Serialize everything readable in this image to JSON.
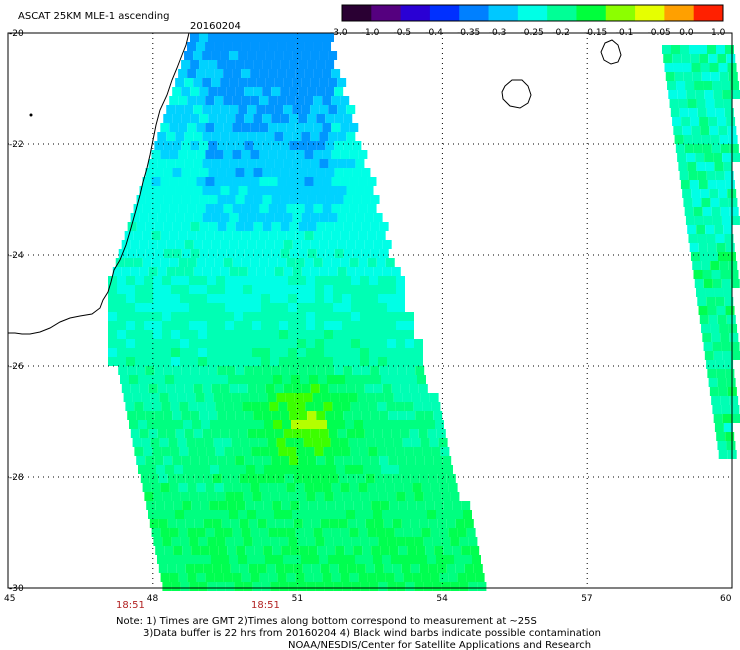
{
  "header": {
    "title": "ASCAT 25KM MLE-1 ascending",
    "date": "20160204"
  },
  "colorbar": {
    "labels": [
      "-3.0",
      "-1.0",
      "-0.5",
      "-0.4",
      "-0.35",
      "-0.3",
      "-0.25",
      "-0.2",
      "-0.15",
      "-0.1",
      "-0.05",
      "0.0",
      "1.0"
    ],
    "colors": [
      "#2a0033",
      "#55007f",
      "#2a00d4",
      "#0030ff",
      "#0080ff",
      "#00c8ff",
      "#00ffe6",
      "#00ff96",
      "#00ff3c",
      "#8cff00",
      "#e6ff00",
      "#ffa000",
      "#ff2000"
    ]
  },
  "axes": {
    "x_ticks": [
      "45",
      "48",
      "51",
      "54",
      "57",
      "60"
    ],
    "y_ticks": [
      "-20",
      "-22",
      "-24",
      "-26",
      "-28",
      "-30"
    ],
    "x_range": [
      45,
      60
    ],
    "y_range": [
      -30,
      -20
    ]
  },
  "times": [
    "18:51",
    "18:51"
  ],
  "notes": {
    "line1": "Note: 1) Times are GMT 2)Times along bottom correspond to measurement at ~25S",
    "line2": "3)Data buffer is 22 hrs from 20160204 4) Black wind barbs indicate possible contamination",
    "line3": "NOAA/NESDIS/Center for Satellite Applications and Research"
  },
  "swath_colors": {
    "blue": "#0096ff",
    "cyan_blue": "#00d2ff",
    "cyan": "#00ffe6",
    "aqua": "#00ffb4",
    "green_aqua": "#00ff80",
    "green": "#00ff50",
    "green2": "#3cff00",
    "yellow_green": "#b4ff00"
  }
}
